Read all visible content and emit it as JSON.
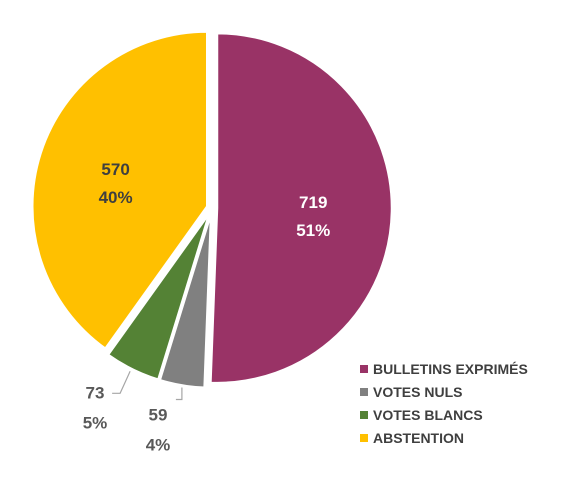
{
  "chart_data": {
    "type": "pie",
    "slices": [
      {
        "label": "BULLETINS EXPRIMÉS",
        "value": 719,
        "percent": "51%",
        "color": "#993366"
      },
      {
        "label": "VOTES NULS",
        "value": 59,
        "percent": "4%",
        "color": "#808080"
      },
      {
        "label": "VOTES BLANCS",
        "value": 73,
        "percent": "5%",
        "color": "#548235"
      },
      {
        "label": "ABSTENTION",
        "value": 570,
        "percent": "40%",
        "color": "#FFC000"
      }
    ],
    "start_angle": "12 o'clock",
    "direction": "clockwise",
    "exploded": true,
    "legend_position": "bottom-right",
    "data_labels": "value and percent"
  }
}
